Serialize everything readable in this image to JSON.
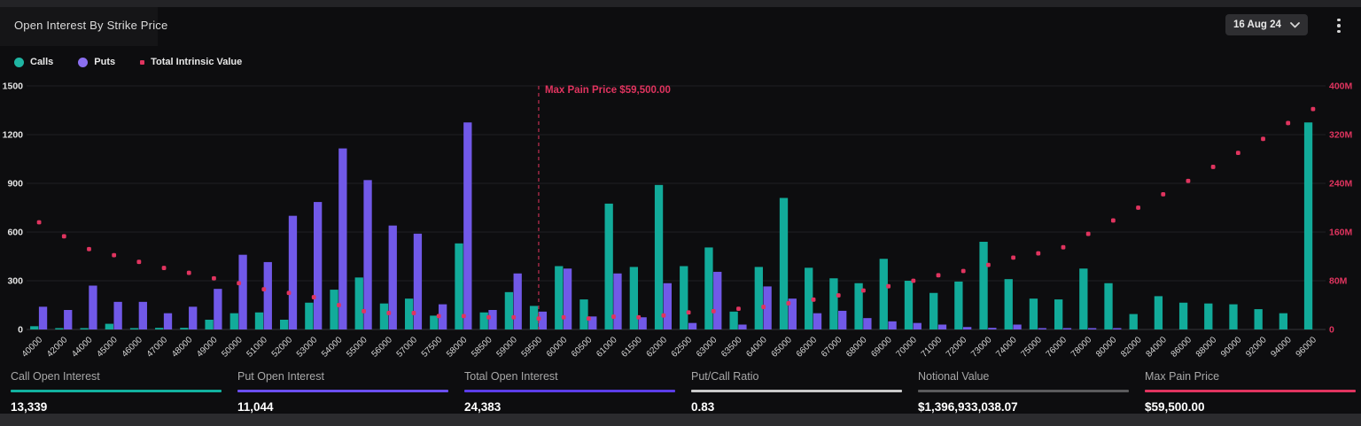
{
  "header": {
    "title": "Open Interest By Strike Price",
    "date_selector": "16 Aug 24"
  },
  "colors": {
    "background": "#0d0d0f",
    "calls": "#12ab9a",
    "puts": "#7159e8",
    "tiv": "#e0345f",
    "grid": "#202023",
    "axis_line": "#35353a",
    "x_label": "#d2d2d2",
    "left_tick": "#e4e4e4",
    "right_tick": "#e0345f",
    "max_pain_line": "#c22f52"
  },
  "legend": {
    "items": [
      {
        "label": "Calls",
        "color": "#1fb5a3",
        "shape": "circle"
      },
      {
        "label": "Puts",
        "color": "#8b6ff0",
        "shape": "circle"
      },
      {
        "label": "Total Intrinsic Value",
        "color": "#e0345f",
        "shape": "square"
      }
    ]
  },
  "chart_data": {
    "type": "bar",
    "title": "Open Interest By Strike Price",
    "categories": [
      "40000",
      "42000",
      "44000",
      "45000",
      "46000",
      "47000",
      "48000",
      "49000",
      "50000",
      "51000",
      "52000",
      "53000",
      "54000",
      "55000",
      "56000",
      "57000",
      "57500",
      "58000",
      "58500",
      "59000",
      "59500",
      "60000",
      "60500",
      "61000",
      "61500",
      "62000",
      "62500",
      "63000",
      "63500",
      "64000",
      "65000",
      "66000",
      "67000",
      "68000",
      "69000",
      "70000",
      "71000",
      "72000",
      "73000",
      "74000",
      "75000",
      "76000",
      "78000",
      "80000",
      "82000",
      "84000",
      "86000",
      "88000",
      "90000",
      "92000",
      "94000",
      "96000"
    ],
    "series": [
      {
        "name": "Calls",
        "type": "bar",
        "axis": "left",
        "color": "#12ab9a",
        "values": [
          20,
          5,
          5,
          35,
          5,
          10,
          10,
          60,
          100,
          105,
          60,
          165,
          245,
          320,
          160,
          190,
          85,
          530,
          105,
          230,
          145,
          390,
          185,
          775,
          385,
          890,
          390,
          505,
          110,
          385,
          810,
          380,
          315,
          285,
          435,
          300,
          225,
          295,
          540,
          310,
          190,
          185,
          375,
          285,
          95,
          205,
          165,
          160,
          155,
          125,
          100,
          1275
        ]
      },
      {
        "name": "Puts",
        "type": "bar",
        "axis": "left",
        "color": "#7159e8",
        "values": [
          140,
          120,
          270,
          170,
          170,
          100,
          140,
          250,
          460,
          415,
          700,
          785,
          1115,
          920,
          640,
          590,
          155,
          1275,
          120,
          345,
          110,
          375,
          80,
          345,
          75,
          285,
          40,
          355,
          30,
          265,
          190,
          100,
          115,
          70,
          50,
          40,
          30,
          15,
          10,
          30,
          5,
          5,
          5,
          5,
          0,
          0,
          0,
          0,
          0,
          0,
          0,
          0
        ]
      },
      {
        "name": "Total Intrinsic Value",
        "type": "scatter",
        "axis": "right",
        "color": "#e0345f",
        "values_millions": [
          176,
          153,
          132,
          122,
          111,
          101,
          93,
          84,
          76,
          66,
          60,
          53,
          40,
          30,
          27,
          27,
          22,
          22,
          20,
          20,
          18,
          20,
          18,
          21,
          20,
          23,
          28,
          30,
          34,
          37,
          43,
          49,
          56,
          64,
          71,
          80,
          89,
          96,
          106,
          118,
          125,
          135,
          157,
          179,
          200,
          222,
          244,
          267,
          290,
          313,
          339,
          362
        ]
      }
    ],
    "left_axis": {
      "ticks": [
        "0",
        "300",
        "600",
        "900",
        "1200",
        "1500"
      ],
      "min": 0,
      "max": 1500
    },
    "right_axis": {
      "ticks": [
        "0",
        "80M",
        "160M",
        "240M",
        "320M",
        "400M"
      ],
      "min": 0,
      "max_millions": 400
    },
    "grid": true,
    "legend_position": "top-left",
    "annotation": {
      "label": "Max Pain Price $59,500.00",
      "strike": "59500"
    }
  },
  "stats": [
    {
      "label": "Call Open Interest",
      "value": "13,339",
      "underline": "#12b2a0"
    },
    {
      "label": "Put Open Interest",
      "value": "11,044",
      "underline": "#6a4ff0"
    },
    {
      "label": "Total Open Interest",
      "value": "24,383",
      "underline": "#5b3de8"
    },
    {
      "label": "Put/Call Ratio",
      "value": "0.83",
      "underline": "#c9c9c9"
    },
    {
      "label": "Notional Value",
      "value": "$1,396,933,038.07",
      "underline": "#5a5a5c"
    },
    {
      "label": "Max Pain Price",
      "value": "$59,500.00",
      "underline": "#e0345f"
    }
  ]
}
